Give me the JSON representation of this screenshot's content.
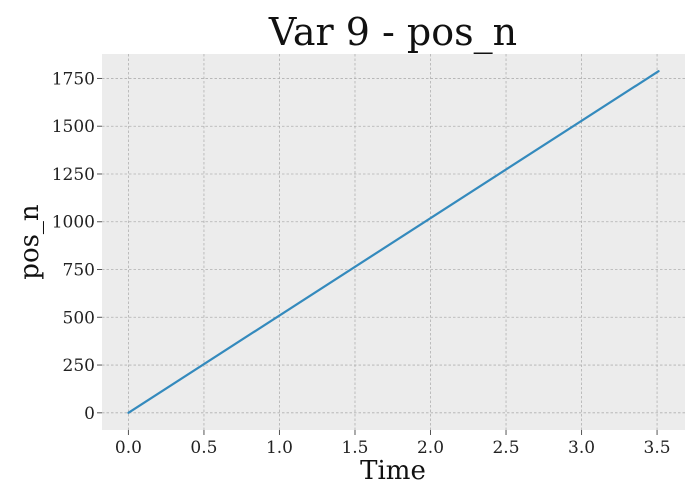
{
  "chart_data": {
    "type": "line",
    "title": "Var 9 - pos_n",
    "xlabel": "Time",
    "ylabel": "pos_n",
    "xlim": [
      -0.175,
      3.685
    ],
    "ylim": [
      -90,
      1878
    ],
    "x_ticks": [
      0.0,
      0.5,
      1.0,
      1.5,
      2.0,
      2.5,
      3.0,
      3.5
    ],
    "x_tick_labels": [
      "0.0",
      "0.5",
      "1.0",
      "1.5",
      "2.0",
      "2.5",
      "3.0",
      "3.5"
    ],
    "y_ticks": [
      0,
      250,
      500,
      750,
      1000,
      1250,
      1500,
      1750
    ],
    "y_tick_labels": [
      "0",
      "250",
      "500",
      "750",
      "1000",
      "1250",
      "1500",
      "1750"
    ],
    "grid": true,
    "series": [
      {
        "color": "#348abd",
        "x": [
          0.0,
          3.51
        ],
        "y": [
          0,
          1788
        ]
      }
    ],
    "colors": {
      "plot_background": "#ececec",
      "grid": "#b0b0b0"
    }
  }
}
